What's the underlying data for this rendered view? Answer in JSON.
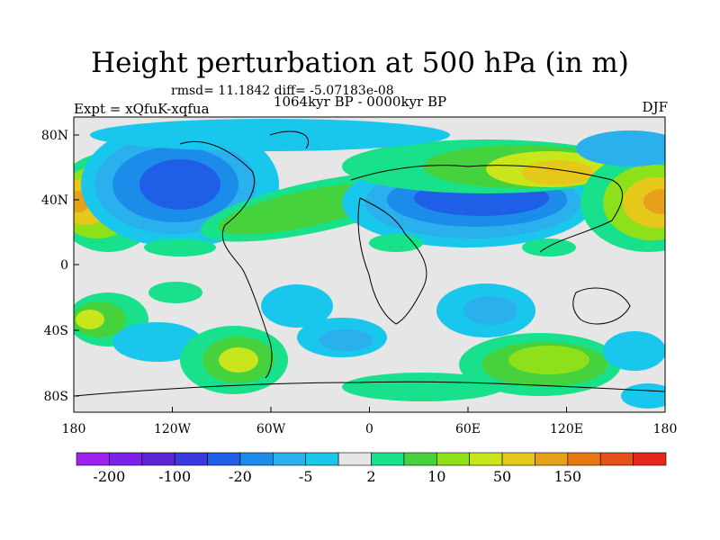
{
  "title": "Height perturbation at 500 hPa (in m)",
  "stats": "rmsd= 11.1842 diff= -5.07183e-08",
  "experiment": "Expt = xQfuK-xqfua",
  "period": "1064kyr BP - 0000kyr BP",
  "season": "DJF",
  "axes": {
    "x_ticks": [
      "180",
      "120W",
      "60W",
      "0",
      "60E",
      "120E",
      "180"
    ],
    "y_ticks": [
      "80N",
      "40N",
      "0",
      "40S",
      "80S"
    ]
  },
  "colorbar": {
    "labels": [
      "-200",
      "-100",
      "-20",
      "-5",
      "2",
      "10",
      "50",
      "150"
    ],
    "colors": [
      "#a020f0",
      "#7d22e8",
      "#5a26d6",
      "#3a3ae0",
      "#1f5fe8",
      "#1c8cea",
      "#2ab0ec",
      "#19c6ec",
      "#e6e6e6",
      "#19e08a",
      "#46d23c",
      "#8ee01a",
      "#c8e61a",
      "#e6c81a",
      "#e6a01a",
      "#e67814",
      "#e6501a",
      "#e6281a"
    ]
  },
  "field_colors": {
    "neutral": "#e6e6e6",
    "neg_light": "#19c6ec",
    "neg_mid": "#2ab0ec",
    "neg_strong": "#1c8cea",
    "neg_deep": "#1f5fe8",
    "pos_light": "#19e08a",
    "pos_mid": "#46d23c",
    "pos_yg": "#8ee01a",
    "pos_y": "#c8e61a",
    "pos_o": "#e6c81a",
    "pos_oo": "#e6a01a",
    "pos_r": "#e67814"
  }
}
